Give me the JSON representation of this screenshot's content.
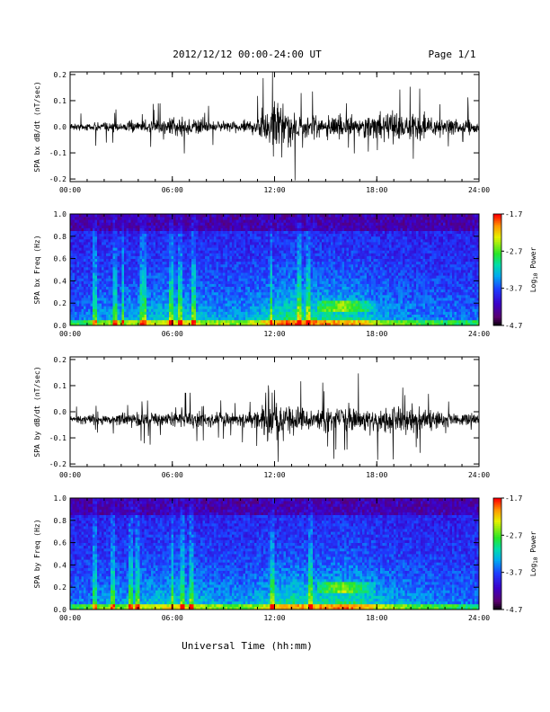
{
  "header": {
    "title": "2012/12/12  00:00-24:00 UT",
    "page": "Page 1/1"
  },
  "footer": {
    "xlabel": "Universal Time (hh:mm)"
  },
  "chart_data": [
    {
      "type": "line",
      "ylabel": "SPA bx dB/dt (nT/sec)",
      "x_ticks": [
        "00:00",
        "06:00",
        "12:00",
        "18:00",
        "24:00"
      ],
      "x_range_hours": [
        0,
        24
      ],
      "y_ticks": [
        "0.2",
        "0.1",
        "0.0",
        "-0.1",
        "-0.2"
      ],
      "ylim": [
        -0.21,
        0.21
      ],
      "series": [
        {
          "baseline": 0.0,
          "envelope_hours": [
            0,
            1,
            2,
            3,
            4,
            5,
            6,
            7,
            8,
            9,
            10,
            11,
            11.5,
            12,
            12.5,
            13,
            14,
            15,
            16,
            17,
            18,
            19,
            20,
            21,
            22,
            23,
            24
          ],
          "envelope_amp": [
            0.02,
            0.025,
            0.03,
            0.03,
            0.035,
            0.04,
            0.06,
            0.06,
            0.045,
            0.04,
            0.035,
            0.05,
            0.13,
            0.17,
            0.14,
            0.1,
            0.07,
            0.065,
            0.07,
            0.065,
            0.08,
            0.09,
            0.08,
            0.065,
            0.055,
            0.045,
            0.035
          ]
        }
      ]
    },
    {
      "type": "heatmap",
      "ylabel": "SPA bx Freq (Hz)",
      "x_ticks": [
        "00:00",
        "06:00",
        "12:00",
        "18:00",
        "24:00"
      ],
      "x_range_hours": [
        0,
        24
      ],
      "y_ticks": [
        "1.0",
        "0.8",
        "0.6",
        "0.4",
        "0.2",
        "0.0"
      ],
      "ylim": [
        0,
        1.0
      ],
      "colorbar": {
        "label": "Log10 Power",
        "ticks": [
          "-1.7",
          "-2.7",
          "-3.7",
          "-4.7"
        ],
        "range": [
          -4.7,
          -1.7
        ]
      },
      "activity_hours": [
        0,
        2,
        4,
        6,
        8,
        10,
        11,
        12,
        13,
        14,
        15,
        16,
        17,
        18,
        20,
        22,
        24
      ],
      "activity_level": [
        0.2,
        0.35,
        0.45,
        0.6,
        0.45,
        0.4,
        0.5,
        0.7,
        0.8,
        0.75,
        0.7,
        0.7,
        0.65,
        0.45,
        0.3,
        0.25,
        0.2
      ],
      "hotspot_band_hz": [
        0.12,
        0.22
      ]
    },
    {
      "type": "line",
      "ylabel": "SPA by dB/dt (nT/sec)",
      "x_ticks": [
        "00:00",
        "06:00",
        "12:00",
        "18:00",
        "24:00"
      ],
      "x_range_hours": [
        0,
        24
      ],
      "y_ticks": [
        "0.2",
        "0.1",
        "0.0",
        "-0.1",
        "-0.2"
      ],
      "ylim": [
        -0.21,
        0.21
      ],
      "series": [
        {
          "baseline": -0.03,
          "envelope_hours": [
            0,
            1,
            2,
            3,
            4,
            5,
            6,
            7,
            8,
            9,
            10,
            11,
            11.5,
            12,
            12.5,
            13,
            14,
            15,
            16,
            17,
            18,
            19,
            20,
            21,
            22,
            23,
            24
          ],
          "envelope_amp": [
            0.02,
            0.025,
            0.03,
            0.04,
            0.05,
            0.045,
            0.06,
            0.06,
            0.05,
            0.045,
            0.04,
            0.06,
            0.15,
            0.19,
            0.12,
            0.08,
            0.07,
            0.075,
            0.08,
            0.075,
            0.08,
            0.085,
            0.07,
            0.06,
            0.05,
            0.04,
            0.035
          ]
        }
      ]
    },
    {
      "type": "heatmap",
      "ylabel": "SPA by Freq (Hz)",
      "x_ticks": [
        "00:00",
        "06:00",
        "12:00",
        "18:00",
        "24:00"
      ],
      "x_range_hours": [
        0,
        24
      ],
      "y_ticks": [
        "1.0",
        "0.8",
        "0.6",
        "0.4",
        "0.2",
        "0.0"
      ],
      "ylim": [
        0,
        1.0
      ],
      "colorbar": {
        "label": "Log10 Power",
        "ticks": [
          "-1.7",
          "-2.7",
          "-3.7",
          "-4.7"
        ],
        "range": [
          -4.7,
          -1.7
        ]
      },
      "activity_hours": [
        0,
        2,
        4,
        6,
        8,
        10,
        11,
        12,
        13,
        14,
        15,
        16,
        17,
        18,
        20,
        22,
        24
      ],
      "activity_level": [
        0.2,
        0.35,
        0.45,
        0.55,
        0.45,
        0.35,
        0.45,
        0.6,
        0.7,
        0.65,
        0.7,
        0.75,
        0.7,
        0.5,
        0.35,
        0.25,
        0.2
      ],
      "hotspot_band_hz": [
        0.14,
        0.24
      ]
    }
  ]
}
